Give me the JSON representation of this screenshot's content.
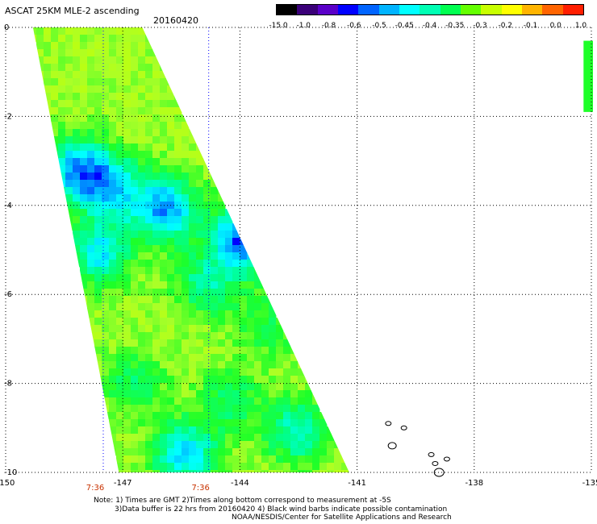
{
  "header": {
    "title": "ASCAT 25KM MLE-2 ascending",
    "date": "20160420"
  },
  "colorbar": {
    "labels": [
      "-15.0",
      "-1.0",
      "-0.8",
      "-0.6",
      "-0.5",
      "-0.45",
      "-0.4",
      "-0.35",
      "-0.3",
      "-0.2",
      "-0.1",
      "0.0",
      "1.0"
    ],
    "colors": [
      "#000000",
      "#3a0078",
      "#5a00c8",
      "#0000ff",
      "#0064ff",
      "#00b4ff",
      "#00ffff",
      "#00ffb4",
      "#00ff50",
      "#64ff00",
      "#c8ff00",
      "#ffff00",
      "#ffb400",
      "#ff6400",
      "#ff1e00"
    ]
  },
  "footer": {
    "times": [
      "7:36",
      "7:36"
    ],
    "note_lines": [
      "Note: 1) Times are GMT 2)Times along bottom correspond to measurement at -5S",
      "3)Data buffer is 22 hrs from 20160420 4) Black wind barbs indicate possible contamination",
      "NOAA/NESDIS/Center for Satellite Applications and Research"
    ]
  },
  "chart_data": {
    "type": "heatmap",
    "title": "ASCAT 25KM MLE-2 ascending",
    "date": "20160420",
    "variable": "MLE-2",
    "x_ticks": [
      -150,
      -147,
      -144,
      -141,
      -138,
      -135
    ],
    "x_tick_labels": [
      "-150",
      "-147",
      "-144",
      "-141",
      "-138",
      "-135"
    ],
    "y_ticks": [
      0,
      -2,
      -4,
      -6,
      -8,
      -10
    ],
    "y_tick_labels": [
      "0",
      "-2",
      "-4",
      "-6",
      "-8",
      "-10"
    ],
    "xlim": [
      -150,
      -135
    ],
    "ylim": [
      -10,
      0
    ],
    "grid": true,
    "swath_corners_lonlat": [
      [
        -149.3,
        0
      ],
      [
        -146.5,
        0
      ],
      [
        -141.2,
        -10
      ],
      [
        -147.1,
        -10
      ]
    ],
    "background_value": -0.25,
    "blobs": [
      {
        "lon": -148.3,
        "lat": -3.1,
        "value": -0.43
      },
      {
        "lon": -147.4,
        "lat": -3.5,
        "value": -0.41
      },
      {
        "lon": -146.0,
        "lat": -4.0,
        "value": -0.45
      },
      {
        "lon": -144.0,
        "lat": -4.7,
        "value": -0.47
      },
      {
        "lon": -147.7,
        "lat": -5.0,
        "value": -0.4
      },
      {
        "lon": -145.0,
        "lat": -5.7,
        "value": -0.35
      },
      {
        "lon": -143.2,
        "lat": -4.1,
        "value": -0.4
      },
      {
        "lon": -145.5,
        "lat": -9.5,
        "value": -0.42
      },
      {
        "lon": -142.6,
        "lat": -9.0,
        "value": -0.38
      },
      {
        "lon": -146.8,
        "lat": -7.9,
        "value": -0.33
      },
      {
        "lon": -144.3,
        "lat": -8.3,
        "value": -0.33
      },
      {
        "lon": -143.4,
        "lat": -6.6,
        "value": -0.32
      }
    ],
    "second_swath_fragment": {
      "lon": [
        -135.2,
        -135.0
      ],
      "lat": [
        -0.3,
        -1.9
      ],
      "value": -0.3
    },
    "islands": [
      {
        "lon": -140.2,
        "lat": -8.9
      },
      {
        "lon": -140.1,
        "lat": -9.4
      },
      {
        "lon": -139.8,
        "lat": -9.0
      },
      {
        "lon": -139.1,
        "lat": -9.6
      },
      {
        "lon": -139.0,
        "lat": -9.8
      },
      {
        "lon": -138.7,
        "lat": -9.7
      },
      {
        "lon": -138.9,
        "lat": -10.0
      }
    ],
    "time_labels": [
      {
        "lon": -147.5,
        "text": "7:36"
      },
      {
        "lon": -144.8,
        "text": "7:36"
      }
    ]
  }
}
